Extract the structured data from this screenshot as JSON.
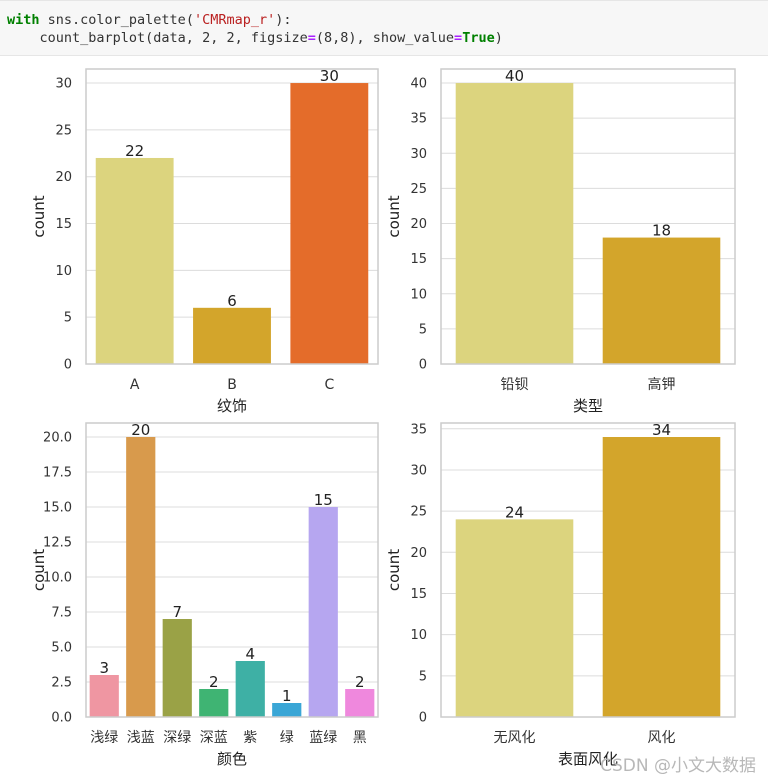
{
  "code": {
    "line1_kw": "with",
    "line1_a": " sns.color_palette(",
    "line1_str": "'CMRmap_r'",
    "line1_b": "):",
    "line2_a": "    count_barplot(data, 2, 2, figsize",
    "line2_eq": "=",
    "line2_b": "(8,8), show_value",
    "line2_eq2": "=",
    "line2_true": "True",
    "line2_c": ")"
  },
  "watermark": "CSDN @小文大数据",
  "chart_data": [
    {
      "type": "bar",
      "categories": [
        "A",
        "B",
        "C"
      ],
      "values": [
        22,
        6,
        30
      ],
      "colors": [
        "#dcd47e",
        "#d3a52b",
        "#e46c2a"
      ],
      "xlabel": "纹饰",
      "ylabel": "count",
      "ylim": [
        0,
        31.5
      ],
      "yticks": [
        0,
        5,
        10,
        15,
        20,
        25,
        30
      ],
      "ytick_labels": [
        "0",
        "5",
        "10",
        "15",
        "20",
        "25",
        "30"
      ],
      "show_values": true,
      "grid": "horizontal"
    },
    {
      "type": "bar",
      "categories": [
        "铅钡",
        "高钾"
      ],
      "values": [
        40,
        18
      ],
      "colors": [
        "#dcd47e",
        "#d3a52b"
      ],
      "xlabel": "类型",
      "ylabel": "count",
      "ylim": [
        0,
        42
      ],
      "yticks": [
        0,
        5,
        10,
        15,
        20,
        25,
        30,
        35,
        40
      ],
      "ytick_labels": [
        "0",
        "5",
        "10",
        "15",
        "20",
        "25",
        "30",
        "35",
        "40"
      ],
      "show_values": true,
      "grid": "horizontal"
    },
    {
      "type": "bar",
      "categories": [
        "浅绿",
        "浅蓝",
        "深绿",
        "深蓝",
        "紫",
        "绿",
        "蓝绿",
        "黑"
      ],
      "values": [
        3,
        20,
        7,
        2,
        4,
        1,
        15,
        2
      ],
      "colors": [
        "#ef96a2",
        "#d89a4c",
        "#9aa246",
        "#3fb473",
        "#3eb0a5",
        "#3aa6d6",
        "#b6a6f0",
        "#ef88dd"
      ],
      "xlabel": "颜色",
      "ylabel": "count",
      "ylim": [
        0,
        21
      ],
      "yticks": [
        0,
        2.5,
        5,
        7.5,
        10,
        12.5,
        15,
        17.5,
        20
      ],
      "ytick_labels": [
        "0.0",
        "2.5",
        "5.0",
        "7.5",
        "10.0",
        "12.5",
        "15.0",
        "17.5",
        "20.0"
      ],
      "show_values": true,
      "grid": "horizontal"
    },
    {
      "type": "bar",
      "categories": [
        "无风化",
        "风化"
      ],
      "values": [
        24,
        34
      ],
      "colors": [
        "#dcd47e",
        "#d3a52b"
      ],
      "xlabel": "表面风化",
      "ylabel": "count",
      "ylim": [
        0,
        35.7
      ],
      "yticks": [
        0,
        5,
        10,
        15,
        20,
        25,
        30,
        35
      ],
      "ytick_labels": [
        "0",
        "5",
        "10",
        "15",
        "20",
        "25",
        "30",
        "35"
      ],
      "show_values": true,
      "grid": "horizontal"
    }
  ]
}
